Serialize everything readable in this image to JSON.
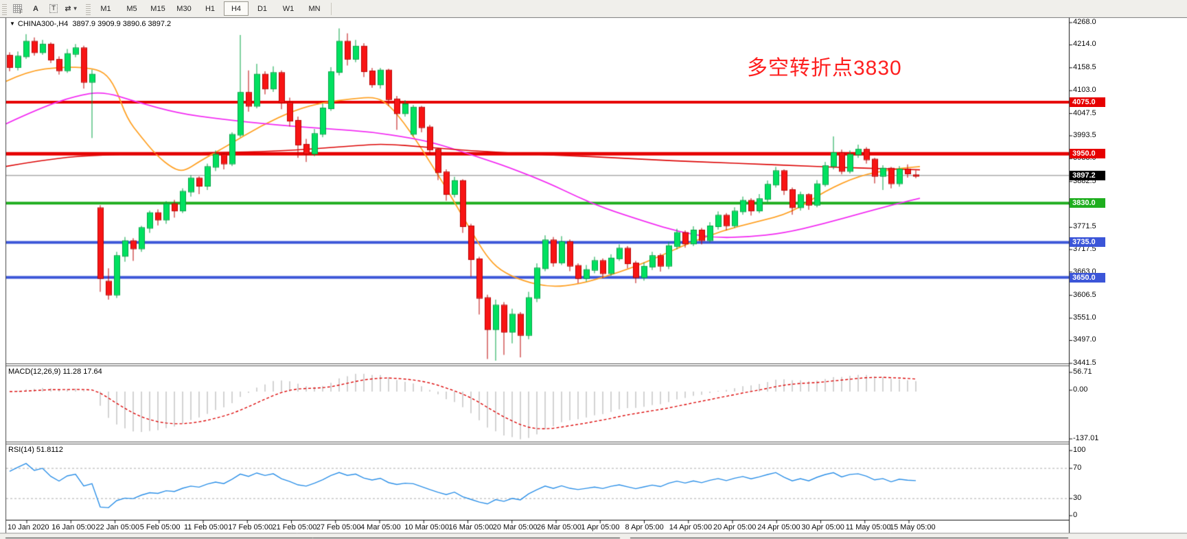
{
  "toolbar": {
    "icons": [
      {
        "name": "chart-shift-icon",
        "glyph": "F"
      },
      {
        "name": "font-icon",
        "glyph": "A"
      },
      {
        "name": "text-label-icon",
        "glyph": "T"
      },
      {
        "name": "cycle-lines-icon",
        "glyph": "⇄"
      }
    ],
    "timeframes": [
      "M1",
      "M5",
      "M15",
      "M30",
      "H1",
      "H4",
      "D1",
      "W1",
      "MN"
    ],
    "active_timeframe": "H4"
  },
  "chart": {
    "symbol_info": "CHINA300-,H4",
    "ohlc_display": "3897.9 3909.9 3890.6 3897.2",
    "annotation": {
      "text": "多空转折点3830",
      "color": "#fe1f1f"
    },
    "price_axis_ticks": [
      "4268.0",
      "4214.0",
      "4158.5",
      "4103.0",
      "4047.5",
      "3993.5",
      "3938.0",
      "3882.5",
      "3827.0",
      "3771.5",
      "3717.5",
      "3663.0",
      "3606.5",
      "3551.0",
      "3497.0",
      "3441.5"
    ],
    "current_price": {
      "label": "3897.2",
      "value": 3897.2,
      "tag_color": "#000000",
      "line_color": "#808080"
    },
    "levels": [
      {
        "label": "4075.0",
        "value": 4075.0,
        "color": "#e60000",
        "width": 4
      },
      {
        "label": "3950.0",
        "value": 3950.0,
        "color": "#e60000",
        "width": 5
      },
      {
        "label": "3830.0",
        "value": 3830.0,
        "color": "#1fae1f",
        "width": 4
      },
      {
        "label": "3735.0",
        "value": 3735.0,
        "color": "#3b55d8",
        "width": 4
      },
      {
        "label": "3650.0",
        "value": 3650.0,
        "color": "#3b55d8",
        "width": 4
      }
    ],
    "colors": {
      "bull_fill": "#00e160",
      "bull_stroke": "#00a443",
      "bear_fill": "#f81414",
      "bear_stroke": "#bb0000",
      "ma_orange": "#ffa226",
      "ma_magenta": "#f32cf3",
      "ma_red": "#dd0505",
      "macd_hist": "#a6a6a6",
      "macd_signal": "#dd0505",
      "rsi_line": "#2a8fe8"
    },
    "chart_data": {
      "type": "candlestick",
      "symbol": "CHINA300-",
      "timeframe": "H4",
      "y_range": [
        3441.5,
        4268.0
      ],
      "ohlc": [
        [
          4188,
          4196,
          4150,
          4160
        ],
        [
          4160,
          4198,
          4152,
          4186
        ],
        [
          4186,
          4240,
          4180,
          4222
        ],
        [
          4222,
          4232,
          4188,
          4196
        ],
        [
          4196,
          4226,
          4190,
          4215
        ],
        [
          4215,
          4220,
          4170,
          4178
        ],
        [
          4178,
          4186,
          4142,
          4152
        ],
        [
          4152,
          4204,
          4146,
          4192
        ],
        [
          4192,
          4216,
          4184,
          4206
        ],
        [
          4206,
          4212,
          4108,
          4124
        ],
        [
          4124,
          4154,
          3988,
          4142
        ],
        [
          3818,
          3825,
          3615,
          3648
        ],
        [
          3640,
          3672,
          3596,
          3608
        ],
        [
          3608,
          3712,
          3600,
          3702
        ],
        [
          3702,
          3748,
          3688,
          3738
        ],
        [
          3738,
          3745,
          3690,
          3720
        ],
        [
          3720,
          3775,
          3712,
          3770
        ],
        [
          3770,
          3812,
          3758,
          3806
        ],
        [
          3806,
          3815,
          3776,
          3790
        ],
        [
          3790,
          3835,
          3780,
          3828
        ],
        [
          3828,
          3838,
          3795,
          3812
        ],
        [
          3812,
          3866,
          3806,
          3858
        ],
        [
          3858,
          3898,
          3846,
          3890
        ],
        [
          3890,
          3895,
          3852,
          3872
        ],
        [
          3872,
          3926,
          3862,
          3918
        ],
        [
          3918,
          3958,
          3908,
          3948
        ],
        [
          3948,
          3952,
          3912,
          3926
        ],
        [
          3926,
          4002,
          3920,
          3996
        ],
        [
          3996,
          4238,
          3990,
          4098
        ],
        [
          4098,
          4152,
          4052,
          4066
        ],
        [
          4066,
          4168,
          4060,
          4142
        ],
        [
          4142,
          4150,
          4094,
          4108
        ],
        [
          4108,
          4162,
          4100,
          4146
        ],
        [
          4146,
          4152,
          4058,
          4074
        ],
        [
          4074,
          4086,
          4016,
          4030
        ],
        [
          4030,
          4040,
          3940,
          3972
        ],
        [
          3972,
          3986,
          3930,
          3950
        ],
        [
          3950,
          4010,
          3944,
          3998
        ],
        [
          3998,
          4072,
          3990,
          4060
        ],
        [
          4060,
          4160,
          4054,
          4148
        ],
        [
          4148,
          4254,
          4140,
          4222
        ],
        [
          4222,
          4242,
          4164,
          4180
        ],
        [
          4180,
          4226,
          4172,
          4210
        ],
        [
          4210,
          4218,
          4136,
          4150
        ],
        [
          4150,
          4158,
          4110,
          4118
        ],
        [
          4118,
          4158,
          4108,
          4152
        ],
        [
          4152,
          4156,
          4066,
          4082
        ],
        [
          4082,
          4090,
          4008,
          4048
        ],
        [
          4048,
          4080,
          4040,
          4070
        ],
        [
          3998,
          4068,
          3992,
          4062
        ],
        [
          4062,
          4066,
          4002,
          4014
        ],
        [
          4014,
          4020,
          3948,
          3960
        ],
        [
          3960,
          3964,
          3886,
          3905
        ],
        [
          3905,
          3912,
          3836,
          3852
        ],
        [
          3852,
          3894,
          3844,
          3884
        ],
        [
          3884,
          3888,
          3758,
          3774
        ],
        [
          3774,
          3780,
          3652,
          3694
        ],
        [
          3694,
          3700,
          3560,
          3600
        ],
        [
          3600,
          3608,
          3452,
          3524
        ],
        [
          3524,
          3596,
          3448,
          3582
        ],
        [
          3582,
          3590,
          3462,
          3518
        ],
        [
          3518,
          3574,
          3490,
          3560
        ],
        [
          3560,
          3566,
          3456,
          3510
        ],
        [
          3510,
          3615,
          3500,
          3600
        ],
        [
          3600,
          3684,
          3590,
          3672
        ],
        [
          3672,
          3752,
          3665,
          3740
        ],
        [
          3740,
          3748,
          3676,
          3686
        ],
        [
          3686,
          3750,
          3680,
          3736
        ],
        [
          3736,
          3742,
          3665,
          3678
        ],
        [
          3678,
          3684,
          3636,
          3648
        ],
        [
          3648,
          3680,
          3640,
          3668
        ],
        [
          3668,
          3700,
          3660,
          3690
        ],
        [
          3690,
          3696,
          3648,
          3660
        ],
        [
          3660,
          3706,
          3654,
          3696
        ],
        [
          3696,
          3730,
          3690,
          3720
        ],
        [
          3720,
          3726,
          3672,
          3684
        ],
        [
          3684,
          3690,
          3636,
          3650
        ],
        [
          3650,
          3686,
          3642,
          3676
        ],
        [
          3676,
          3712,
          3668,
          3702
        ],
        [
          3702,
          3708,
          3664,
          3678
        ],
        [
          3678,
          3736,
          3670,
          3726
        ],
        [
          3726,
          3768,
          3718,
          3758
        ],
        [
          3758,
          3764,
          3722,
          3732
        ],
        [
          3732,
          3774,
          3726,
          3764
        ],
        [
          3764,
          3770,
          3730,
          3740
        ],
        [
          3740,
          3784,
          3734,
          3774
        ],
        [
          3774,
          3810,
          3766,
          3800
        ],
        [
          3800,
          3806,
          3764,
          3776
        ],
        [
          3776,
          3820,
          3770,
          3810
        ],
        [
          3810,
          3846,
          3802,
          3836
        ],
        [
          3836,
          3842,
          3800,
          3812
        ],
        [
          3812,
          3852,
          3806,
          3840
        ],
        [
          3840,
          3885,
          3832,
          3875
        ],
        [
          3875,
          3918,
          3868,
          3908
        ],
        [
          3908,
          3912,
          3850,
          3862
        ],
        [
          3862,
          3868,
          3802,
          3820
        ],
        [
          3820,
          3858,
          3812,
          3850
        ],
        [
          3850,
          3854,
          3814,
          3826
        ],
        [
          3826,
          3886,
          3820,
          3876
        ],
        [
          3876,
          3930,
          3870,
          3920
        ],
        [
          3920,
          3992,
          3912,
          3952
        ],
        [
          3952,
          3960,
          3900,
          3908
        ],
        [
          3908,
          3958,
          3902,
          3948
        ],
        [
          3948,
          3972,
          3940,
          3960
        ],
        [
          3960,
          3966,
          3926,
          3936
        ],
        [
          3936,
          3940,
          3878,
          3896
        ],
        [
          3896,
          3922,
          3862,
          3914
        ],
        [
          3914,
          3918,
          3866,
          3878
        ],
        [
          3878,
          3920,
          3870,
          3912
        ],
        [
          3912,
          3924,
          3892,
          3902
        ],
        [
          3897.9,
          3909.9,
          3890.6,
          3897.2
        ]
      ],
      "moving_averages": [
        {
          "name": "ma-orange",
          "points": [
            [
              8,
              4125
            ],
            [
              40,
              4150
            ],
            [
              90,
              4161
            ],
            [
              130,
              4158
            ],
            [
              152,
              4148
            ],
            [
              168,
              4112
            ],
            [
              185,
              4035
            ],
            [
              205,
              3992
            ],
            [
              228,
              3946
            ],
            [
              252,
              3914
            ],
            [
              268,
              3907
            ],
            [
              292,
              3933
            ],
            [
              330,
              3968
            ],
            [
              380,
              4018
            ],
            [
              430,
              4056
            ],
            [
              472,
              4075
            ],
            [
              512,
              4083
            ],
            [
              548,
              4088
            ],
            [
              568,
              4066
            ],
            [
              588,
              4026
            ],
            [
              608,
              3978
            ],
            [
              628,
              3925
            ],
            [
              648,
              3872
            ],
            [
              668,
              3815
            ],
            [
              688,
              3758
            ],
            [
              708,
              3703
            ],
            [
              728,
              3667
            ],
            [
              762,
              3641
            ],
            [
              802,
              3626
            ],
            [
              845,
              3634
            ],
            [
              882,
              3652
            ],
            [
              922,
              3674
            ],
            [
              962,
              3702
            ],
            [
              1002,
              3732
            ],
            [
              1052,
              3763
            ],
            [
              1102,
              3785
            ],
            [
              1152,
              3806
            ],
            [
              1202,
              3860
            ],
            [
              1252,
              3897
            ],
            [
              1302,
              3913
            ],
            [
              1340,
              3919
            ]
          ]
        },
        {
          "name": "ma-magenta",
          "points": [
            [
              8,
              4022
            ],
            [
              60,
              4062
            ],
            [
              110,
              4090
            ],
            [
              150,
              4101
            ],
            [
              200,
              4075
            ],
            [
              260,
              4048
            ],
            [
              320,
              4034
            ],
            [
              400,
              4020
            ],
            [
              480,
              4010
            ],
            [
              540,
              4003
            ],
            [
              600,
              3988
            ],
            [
              640,
              3973
            ],
            [
              700,
              3940
            ],
            [
              740,
              3918
            ],
            [
              800,
              3878
            ],
            [
              840,
              3846
            ],
            [
              880,
              3818
            ],
            [
              940,
              3785
            ],
            [
              990,
              3760
            ],
            [
              1040,
              3746
            ],
            [
              1090,
              3748
            ],
            [
              1140,
              3757
            ],
            [
              1200,
              3780
            ],
            [
              1260,
              3808
            ],
            [
              1310,
              3830
            ],
            [
              1340,
              3842
            ]
          ]
        },
        {
          "name": "ma-red",
          "points": [
            [
              8,
              3919
            ],
            [
              80,
              3940
            ],
            [
              160,
              3948
            ],
            [
              240,
              3951
            ],
            [
              320,
              3953
            ],
            [
              400,
              3956
            ],
            [
              460,
              3962
            ],
            [
              520,
              3970
            ],
            [
              560,
              3974
            ],
            [
              620,
              3966
            ],
            [
              680,
              3958
            ],
            [
              740,
              3952
            ],
            [
              800,
              3947
            ],
            [
              860,
              3943
            ],
            [
              920,
              3938
            ],
            [
              980,
              3933
            ],
            [
              1040,
              3929
            ],
            [
              1100,
              3925
            ],
            [
              1160,
              3921
            ],
            [
              1220,
              3917
            ],
            [
              1280,
              3914
            ],
            [
              1340,
              3911
            ]
          ]
        }
      ]
    }
  },
  "macd": {
    "label": "MACD(12,26,9)",
    "values": "11.28 17.64",
    "ticks": [
      "56.71",
      "0.00",
      "-137.01"
    ]
  },
  "rsi": {
    "label": "RSI(14)",
    "value": "51.8112",
    "ticks": [
      "100",
      "70",
      "30",
      "0"
    ],
    "guide_levels": [
      70,
      30
    ]
  },
  "timeline": [
    "10 Jan 2020",
    "16 Jan 05:00",
    "22 Jan 05:00",
    "5 Feb 05:00",
    "11 Feb 05:00",
    "17 Feb 05:00",
    "21 Feb 05:00",
    "27 Feb 05:00",
    "4 Mar 05:00",
    "10 Mar 05:00",
    "16 Mar 05:00",
    "20 Mar 05:00",
    "26 Mar 05:00",
    "1 Apr 05:00",
    "8 Apr 05:00",
    "14 Apr 05:00",
    "20 Apr 05:00",
    "24 Apr 05:00",
    "30 Apr 05:00",
    "11 May 05:00",
    "15 May 05:00"
  ]
}
